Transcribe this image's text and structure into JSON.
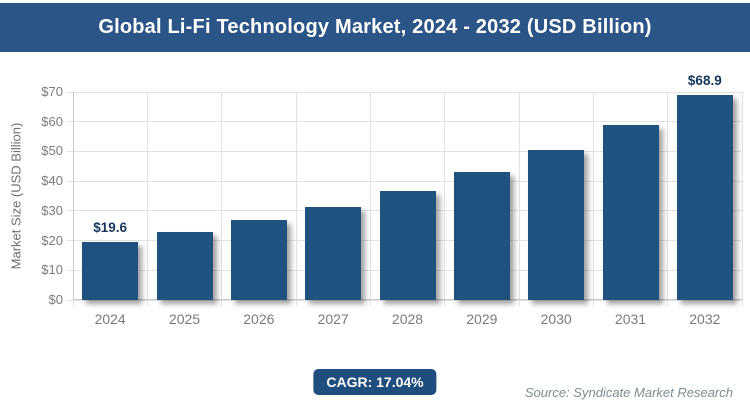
{
  "header": {
    "title": "Global Li-Fi Technology Market, 2024 - 2032 (USD Billion)"
  },
  "chart_data": {
    "type": "bar",
    "title": "Global Li-Fi Technology Market, 2024 - 2032 (USD Billion)",
    "categories": [
      "2024",
      "2025",
      "2026",
      "2027",
      "2028",
      "2029",
      "2030",
      "2031",
      "2032"
    ],
    "values": [
      19.6,
      22.9,
      26.8,
      31.4,
      36.8,
      43.0,
      50.4,
      58.9,
      68.9
    ],
    "value_labels": [
      "$19.6",
      "",
      "",
      "",
      "",
      "",
      "",
      "",
      "$68.9"
    ],
    "xlabel": "",
    "ylabel": "Market Size (USD Billion)",
    "ylim": [
      0,
      70
    ],
    "ytick_step": 10,
    "ytick_prefix": "$",
    "grid": true,
    "legend": false,
    "bar_color": "#20527f"
  },
  "footer": {
    "cagr_label": "CAGR: 17.04%",
    "source": "Source: Syndicate Market Research"
  },
  "colors": {
    "header_bg": "#2b5586",
    "bar_fill": "#20527f",
    "badge_bg": "#1f4e7e",
    "value_label": "#17365d",
    "axis_text": "#7b7b7b",
    "source_text": "#7f8c94",
    "gridline": "#e2e2e2",
    "axis_line": "#c9c9c9",
    "title_text": "#ffffff"
  }
}
